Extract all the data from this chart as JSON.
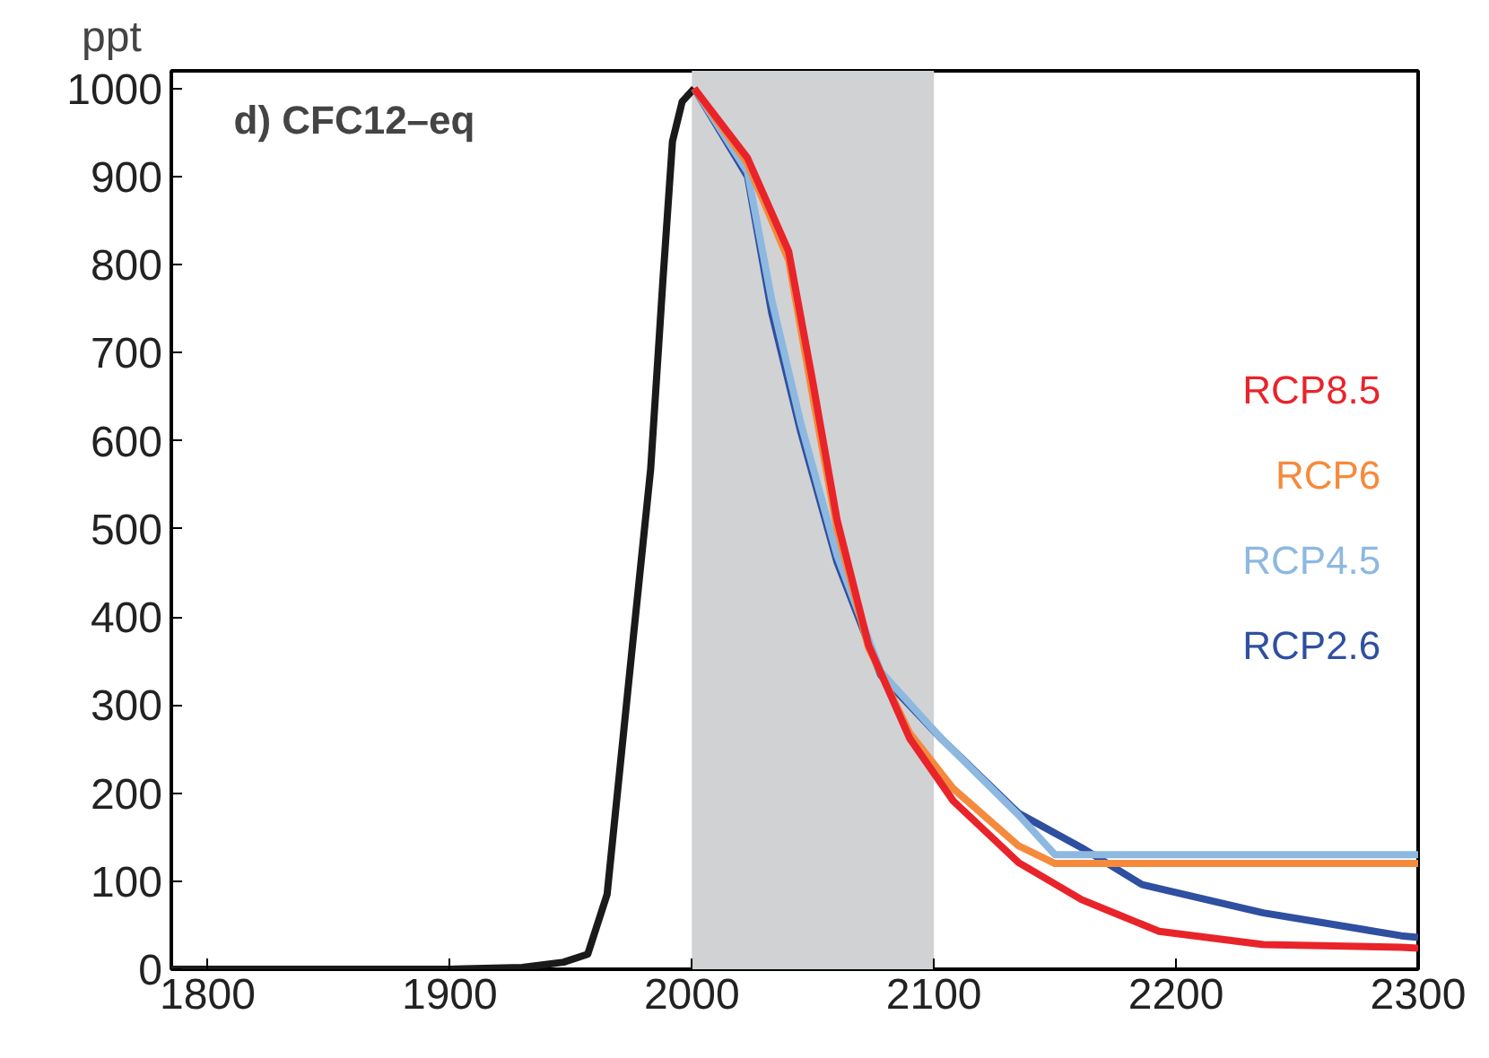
{
  "chart_data": {
    "type": "line",
    "ylabel": "ppt",
    "annotations": [
      "d) CFC12–eq"
    ],
    "xlim": [
      1785,
      2300
    ],
    "xticks": [
      1800,
      1900,
      2000,
      2100,
      2200,
      2300
    ],
    "ylim": [
      0,
      1020
    ],
    "yticks": [
      0,
      100,
      200,
      300,
      400,
      500,
      600,
      700,
      800,
      900,
      1000
    ],
    "grid": false,
    "legend": "right",
    "line_style": "solid",
    "marker": "none",
    "bands": [
      {
        "axis": "x",
        "from": 2000,
        "to": 2100,
        "color": "#d1d2d4"
      }
    ],
    "series": [
      {
        "color": "#1a1a1a",
        "x": [
          1785,
          1900,
          1930,
          1947,
          1957,
          1965,
          1975,
          1983,
          1988,
          1992,
          1996,
          2001
        ],
        "values": [
          0,
          0,
          2,
          8,
          17,
          85,
          355,
          568,
          780,
          940,
          985,
          1000
        ]
      },
      {
        "name": "RCP2.6",
        "color": "#2f4fa0",
        "x": [
          2001,
          2023,
          2033,
          2045,
          2060,
          2078,
          2103,
          2135,
          2161,
          2186,
          2236,
          2293,
          2300
        ],
        "values": [
          1000,
          900,
          745,
          610,
          462,
          334,
          262,
          177,
          138,
          96,
          64,
          38,
          36
        ]
      },
      {
        "name": "RCP4.5",
        "color": "#8db8e0",
        "x": [
          2001,
          2023,
          2033,
          2045,
          2060,
          2078,
          2103,
          2135,
          2150,
          2300
        ],
        "values": [
          1000,
          905,
          760,
          620,
          470,
          338,
          262,
          175,
          130,
          130
        ]
      },
      {
        "name": "RCP6",
        "color": "#f58a3c",
        "x": [
          2001,
          2023,
          2040,
          2050,
          2060,
          2073,
          2090,
          2108,
          2135,
          2150,
          2300
        ],
        "values": [
          1000,
          915,
          805,
          650,
          500,
          365,
          268,
          205,
          140,
          120,
          120
        ]
      },
      {
        "name": "RCP8.5",
        "color": "#e8242a",
        "x": [
          2001,
          2023,
          2040,
          2050,
          2060,
          2073,
          2090,
          2108,
          2135,
          2161,
          2193,
          2236,
          2293,
          2300
        ],
        "values": [
          1000,
          921,
          815,
          666,
          510,
          368,
          262,
          191,
          121,
          79,
          43,
          28,
          25,
          24
        ]
      }
    ]
  }
}
